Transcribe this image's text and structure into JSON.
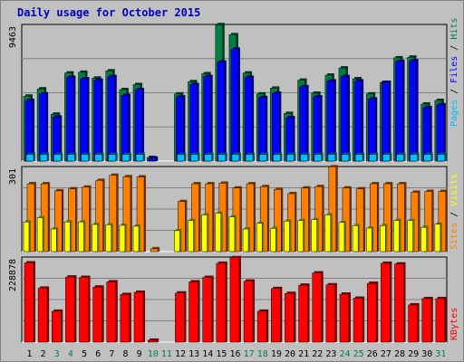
{
  "title": "Daily usage for October 2015",
  "colors": {
    "background": "#c0c0c0",
    "title": "#0000c0",
    "hits": "#008040",
    "files": "#0000ff",
    "pages": "#00c0ff",
    "visits": "#ffff00",
    "sites": "#ff8000",
    "kbytes": "#ff0000",
    "weekend_day_label": "#008040"
  },
  "chart_data": [
    {
      "type": "bar",
      "name": "hits-files-pages",
      "max_label": "9463",
      "ylim": [
        0,
        9463
      ],
      "grid": true,
      "categories": [
        "1",
        "2",
        "3",
        "4",
        "5",
        "6",
        "7",
        "8",
        "9",
        "10",
        "11",
        "12",
        "13",
        "14",
        "15",
        "16",
        "17",
        "18",
        "19",
        "20",
        "21",
        "22",
        "23",
        "24",
        "25",
        "26",
        "27",
        "28",
        "29",
        "30",
        "31"
      ],
      "series": [
        {
          "name": "Hits",
          "values": [
            4500,
            5000,
            3250,
            6100,
            6150,
            5750,
            6250,
            4950,
            5300,
            250,
            0,
            4650,
            5500,
            6050,
            9450,
            8750,
            6100,
            4650,
            5050,
            3300,
            5600,
            4700,
            5950,
            6450,
            5700,
            4650,
            5450,
            7150,
            7200,
            3950,
            4200
          ]
        },
        {
          "name": "Files",
          "values": [
            4200,
            4650,
            3050,
            5800,
            5700,
            5600,
            5850,
            4550,
            4950,
            200,
            0,
            4450,
            5300,
            5850,
            6850,
            7750,
            5800,
            4400,
            4700,
            3000,
            5150,
            4450,
            5550,
            5850,
            5550,
            4300,
            5450,
            6900,
            6950,
            3700,
            3900
          ]
        },
        {
          "name": "Pages",
          "values": [
            400,
            400,
            400,
            400,
            400,
            400,
            400,
            400,
            400,
            0,
            0,
            400,
            400,
            400,
            400,
            400,
            400,
            400,
            400,
            400,
            400,
            400,
            400,
            400,
            400,
            400,
            400,
            400,
            400,
            400,
            400
          ]
        }
      ],
      "legend": [
        "Pages",
        "Files",
        "Hits"
      ]
    },
    {
      "type": "bar",
      "name": "sites-visits",
      "max_label": "301",
      "ylim": [
        0,
        301
      ],
      "grid": true,
      "series": [
        {
          "name": "Sites",
          "values": [
            240,
            240,
            215,
            222,
            228,
            252,
            270,
            265,
            264,
            10,
            0,
            177,
            240,
            240,
            242,
            225,
            240,
            230,
            220,
            205,
            225,
            230,
            300,
            225,
            222,
            240,
            240,
            240,
            210,
            213,
            213
          ]
        },
        {
          "name": "Visits",
          "values": [
            105,
            120,
            80,
            105,
            105,
            96,
            95,
            93,
            90,
            0,
            0,
            74,
            110,
            130,
            136,
            123,
            80,
            100,
            82,
            108,
            110,
            113,
            130,
            103,
            92,
            83,
            92,
            110,
            110,
            86,
            97
          ]
        }
      ],
      "legend": [
        "Sites",
        "Visits"
      ]
    },
    {
      "type": "bar",
      "name": "kbytes",
      "max_label": "228878",
      "ylim": [
        0,
        228878
      ],
      "grid": true,
      "series": [
        {
          "name": "KBytes",
          "values": [
            213000,
            145000,
            83000,
            175000,
            174000,
            148000,
            162000,
            128000,
            134000,
            5000,
            0,
            132000,
            162000,
            174000,
            212000,
            227000,
            164000,
            83000,
            144000,
            131000,
            153000,
            186000,
            154000,
            129000,
            118000,
            158000,
            212000,
            210000,
            100000,
            117000,
            117000
          ]
        }
      ],
      "legend": [
        "KBytes"
      ]
    }
  ],
  "x_axis": {
    "labels": [
      "1",
      "2",
      "3",
      "4",
      "5",
      "6",
      "7",
      "8",
      "9",
      "10",
      "11",
      "12",
      "13",
      "14",
      "15",
      "16",
      "17",
      "18",
      "19",
      "20",
      "21",
      "22",
      "23",
      "24",
      "25",
      "26",
      "27",
      "28",
      "29",
      "30",
      "31"
    ],
    "weekend_days": [
      "3",
      "4",
      "10",
      "11",
      "17",
      "18",
      "24",
      "25",
      "31"
    ]
  }
}
